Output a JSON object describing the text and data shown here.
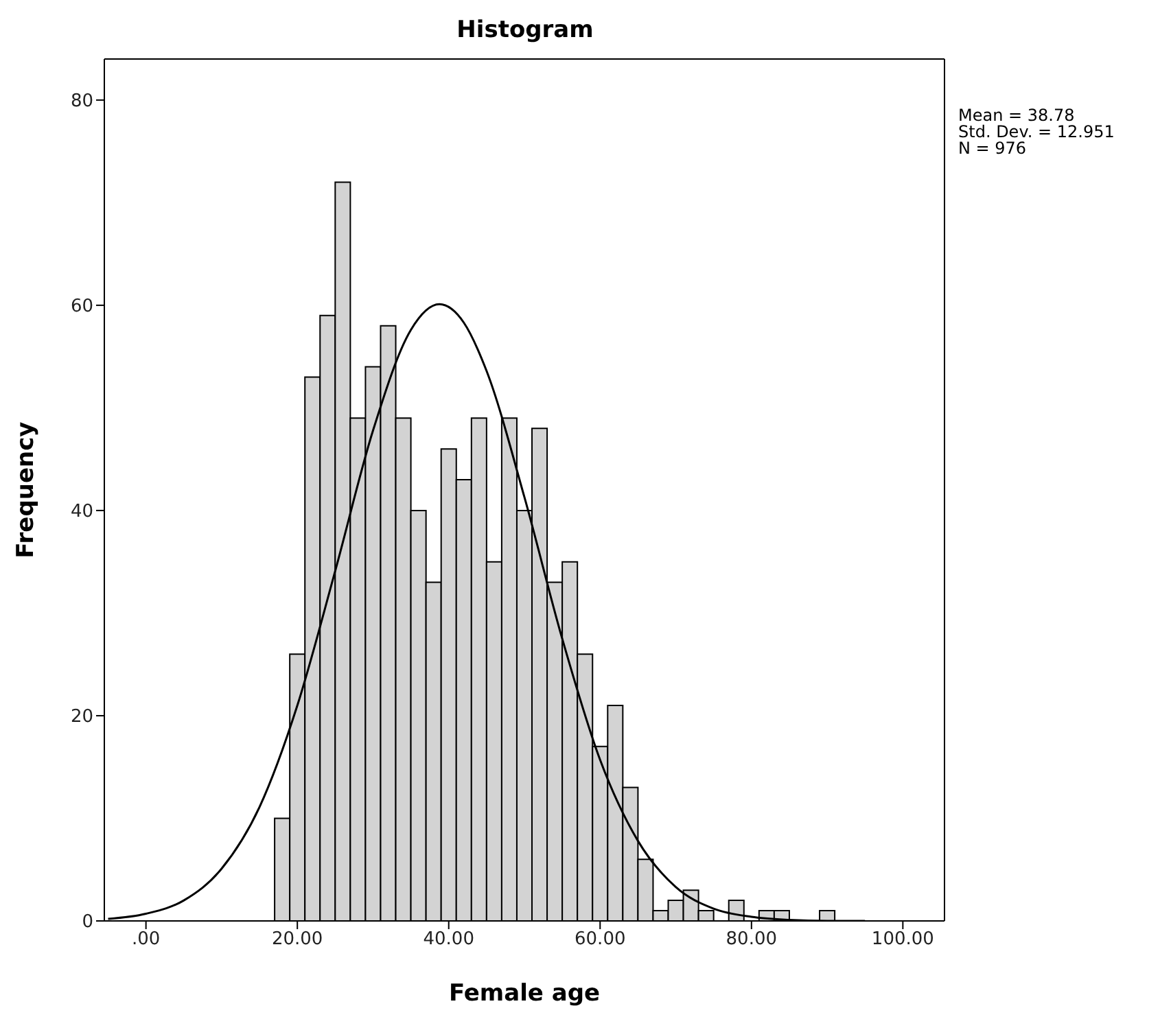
{
  "chart_data": {
    "type": "histogram",
    "title": "Histogram",
    "xlabel": "Female age",
    "ylabel": "Frequency",
    "annotations": [
      "Mean = 38.78",
      "Std. Dev. = 12.951",
      "N = 976"
    ],
    "bins": [
      17,
      19,
      21,
      23,
      25,
      27,
      29,
      31,
      33,
      35,
      37,
      39,
      41,
      43,
      45,
      47,
      49,
      51,
      53,
      55,
      57,
      59,
      61,
      63,
      65,
      67,
      69,
      71,
      73,
      75,
      77,
      79,
      81,
      83,
      85,
      87,
      89,
      91
    ],
    "values": [
      10,
      26,
      53,
      59,
      72,
      49,
      54,
      58,
      49,
      40,
      33,
      46,
      43,
      49,
      35,
      49,
      40,
      48,
      33,
      35,
      26,
      17,
      21,
      13,
      6,
      1,
      2,
      3,
      1,
      0,
      2,
      0,
      1,
      1,
      0,
      0,
      1
    ],
    "color": "#d3d3d3",
    "series": [
      {
        "type": "line",
        "color": "#000000",
        "x": [
          -5,
          0,
          5,
          10,
          15,
          20,
          25,
          30,
          35,
          38.78,
          42,
          45,
          50,
          55,
          60,
          65,
          70,
          75,
          80,
          85,
          90,
          95
        ],
        "values": [
          0.2,
          0.7,
          2.0,
          5.1,
          11.1,
          21.0,
          34.1,
          47.8,
          57.6,
          60.1,
          58.3,
          53.6,
          41.3,
          27.5,
          15.7,
          7.8,
          3.3,
          1.2,
          0.4,
          0.1,
          0,
          0
        ]
      }
    ],
    "xlim": [
      -5.5,
      105.5
    ],
    "ylim": [
      0,
      84
    ],
    "xticks": [
      {
        "value": 0,
        "label": ".00"
      },
      {
        "value": 20,
        "label": "20.00"
      },
      {
        "value": 40,
        "label": "40.00"
      },
      {
        "value": 60,
        "label": "60.00"
      },
      {
        "value": 80,
        "label": "80.00"
      },
      {
        "value": 100,
        "label": "100.00"
      }
    ],
    "yticks": [
      0,
      20,
      40,
      60,
      80
    ],
    "grid": false
  }
}
